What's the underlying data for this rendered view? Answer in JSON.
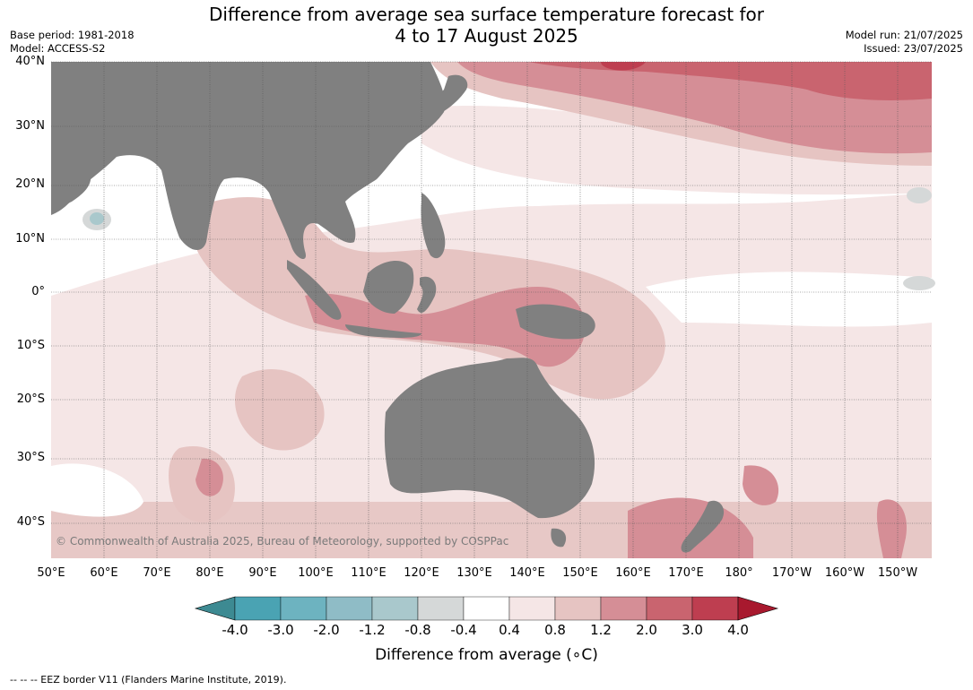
{
  "title_line1": "Difference from average sea surface temperature forecast for",
  "title_line2": "4 to 17 August 2025",
  "meta_left": [
    "Base period: 1981-2018",
    "Model: ACCESS-S2"
  ],
  "meta_right": [
    "Model run: 21/07/2025",
    "Issued: 23/07/2025"
  ],
  "latitude_labels": [
    "40°N",
    "30°N",
    "20°N",
    "10°N",
    "0°",
    "10°S",
    "20°S",
    "30°S",
    "40°S"
  ],
  "longitude_labels": [
    "50°E",
    "60°E",
    "70°E",
    "80°E",
    "90°E",
    "100°E",
    "110°E",
    "120°E",
    "130°E",
    "140°E",
    "150°E",
    "160°E",
    "170°E",
    "180°",
    "170°W",
    "160°W",
    "150°W"
  ],
  "copyright": "© Commonwealth of Australia 2025, Bureau of Meteorology, supported by COSPPac",
  "colorbar": {
    "title": "Difference from average (∘C)",
    "tick_labels": [
      "-4.0",
      "-3.0",
      "-2.0",
      "-1.2",
      "-0.8",
      "-0.4",
      "0.4",
      "0.8",
      "1.2",
      "2.0",
      "3.0",
      "4.0"
    ],
    "colors": [
      "#3d8a92",
      "#4aa3b3",
      "#6db3c0",
      "#8fbcc6",
      "#a9c8cc",
      "#d5d8d8",
      "#ffffff",
      "#f5e6e6",
      "#e6c4c2",
      "#d58e96",
      "#c9646f",
      "#be3e50",
      "#a8192e"
    ]
  },
  "colors": {
    "land": "#808080",
    "neutral": "#ffffff",
    "warm_light": "#f5e6e6",
    "warm_mid": "#e6c4c2",
    "warm_strong": "#d58e96",
    "warm_stronger": "#c9646f",
    "warm_max": "#be3e50",
    "cool_light": "#d5d8d8",
    "cool_mid": "#a9c8cc"
  },
  "footnote": "--  --  -- EEZ border V11 (Flanders Marine Institute, 2019)."
}
